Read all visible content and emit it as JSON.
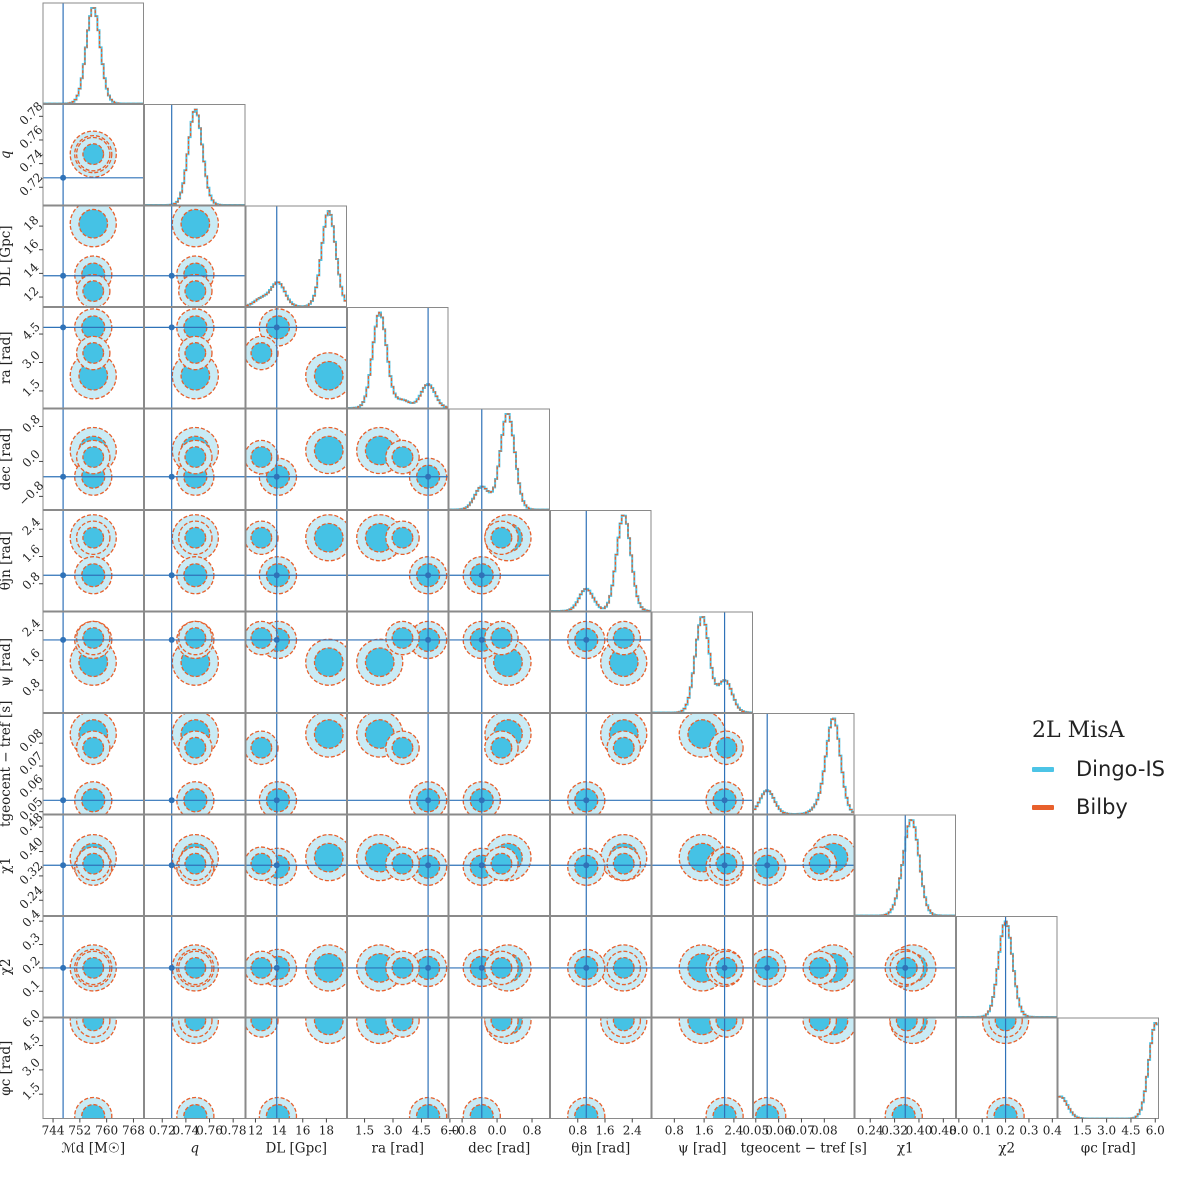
{
  "chart_data": {
    "type": "corner",
    "parameters": [
      {
        "label": "ℳd [M☉]",
        "short": "Md",
        "range": [
          741,
          771
        ],
        "ticks": [
          744,
          752,
          760,
          768
        ],
        "truth": 747
      },
      {
        "label": "q",
        "short": "q",
        "range": [
          0.705,
          0.79
        ],
        "ticks": [
          0.72,
          0.74,
          0.76,
          0.78
        ],
        "truth": 0.728
      },
      {
        "label": "DL [Gpc]",
        "short": "DL",
        "range": [
          11.2,
          19.7
        ],
        "ticks": [
          12,
          14,
          16,
          18
        ],
        "truth": 13.8
      },
      {
        "label": "ra [rad]",
        "short": "ra",
        "range": [
          0.6,
          5.9
        ],
        "ticks": [
          1.5,
          3.0,
          4.5,
          6.0
        ],
        "truth": 4.85
      },
      {
        "label": "dec [rad]",
        "short": "dec",
        "range": [
          -1.1,
          1.2
        ],
        "ticks": [
          -0.8,
          0.0,
          0.8
        ],
        "truth": -0.35
      },
      {
        "label": "θjn [rad]",
        "short": "theta_jn",
        "range": [
          0.0,
          2.95
        ],
        "ticks": [
          0.8,
          1.6,
          2.4
        ],
        "truth": 1.05
      },
      {
        "label": "ψ [rad]",
        "short": "psi",
        "range": [
          0.2,
          2.9
        ],
        "ticks": [
          0.8,
          1.6,
          2.4
        ],
        "truth": 2.15
      },
      {
        "label": "tgeocent − tref [s]",
        "short": "tc",
        "range": [
          0.049,
          0.093
        ],
        "ticks": [
          0.05,
          0.06,
          0.07,
          0.08
        ],
        "truth": 0.055
      },
      {
        "label": "χ1",
        "short": "chi1",
        "range": [
          0.19,
          0.52
        ],
        "ticks": [
          0.24,
          0.32,
          0.4,
          0.48
        ],
        "truth": 0.355
      },
      {
        "label": "χ2",
        "short": "chi2",
        "range": [
          -0.01,
          0.42
        ],
        "ticks": [
          0.0,
          0.1,
          0.2,
          0.3,
          0.4
        ],
        "truth": 0.2
      },
      {
        "label": "φc [rad]",
        "short": "phi_c",
        "range": [
          0.0,
          6.2
        ],
        "ticks": [
          1.5,
          3.0,
          4.5,
          6.0
        ],
        "truth": null
      }
    ],
    "x_tick_labels": [
      [
        "744",
        "752",
        "760",
        "768"
      ],
      [
        "0.72",
        "0.74",
        "0.76",
        "0.78"
      ],
      [
        "12",
        "14",
        "16",
        "18"
      ],
      [
        "1.5",
        "3.0",
        "4.5",
        "6.0"
      ],
      [
        "−0.8",
        "0.0",
        "0.8"
      ],
      [
        "0.8",
        "1.6",
        "2.4"
      ],
      [
        "0.8",
        "1.6",
        "2.4"
      ],
      [
        "0.05",
        "0.06",
        "0.07",
        "0.08"
      ],
      [
        "0.24",
        "0.32",
        "0.40",
        "0.48"
      ],
      [
        "0.0",
        "0.1",
        "0.2",
        "0.3",
        "0.4"
      ],
      [
        "1.5",
        "3.0",
        "4.5",
        "6.0"
      ]
    ],
    "y_tick_labels": [
      null,
      [
        "0.72",
        "0.74",
        "0.76",
        "0.78"
      ],
      [
        "12",
        "14",
        "16",
        "18"
      ],
      [
        "1.5",
        "3.0",
        "4.5",
        "6.0"
      ],
      [
        "−0.8",
        "0.0",
        "0.8"
      ],
      [
        "0.8",
        "1.6",
        "2.4"
      ],
      [
        "0.8",
        "1.6",
        "2.4"
      ],
      [
        "0.05",
        "0.06",
        "0.07",
        "0.08"
      ],
      [
        "0.24",
        "0.32",
        "0.40",
        "0.48"
      ],
      [
        "0.1",
        "0.2",
        "0.3",
        "0.4"
      ],
      [
        "1.5",
        "3.0",
        "4.5",
        "6.0"
      ]
    ],
    "modes": [
      {
        "weight": 0.72,
        "Md": 756,
        "q": 0.748,
        "DL": 18.2,
        "ra": 2.3,
        "dec": 0.25,
        "theta_jn": 2.15,
        "psi": 1.55,
        "tc": 0.084,
        "chi1": 0.38,
        "chi2": 0.2,
        "phi_c": 6.05
      },
      {
        "weight": 0.18,
        "Md": 756,
        "q": 0.748,
        "DL": 13.9,
        "ra": 4.85,
        "dec": -0.35,
        "theta_jn": 1.05,
        "psi": 2.15,
        "tc": 0.055,
        "chi1": 0.35,
        "chi2": 0.2,
        "phi_c": 0.15
      },
      {
        "weight": 0.06,
        "Md": 756,
        "q": 0.748,
        "DL": 12.5,
        "ra": 3.5,
        "dec": 0.1,
        "theta_jn": 2.15,
        "psi": 2.2,
        "tc": 0.078,
        "chi1": 0.36,
        "chi2": 0.2,
        "phi_c": 6.05
      }
    ],
    "legend": {
      "title": "2L MisA",
      "entries": [
        {
          "name": "Dingo-IS",
          "color": "#4cc4e6",
          "style": "solid"
        },
        {
          "name": "Bilby",
          "color": "#e8602c",
          "style": "dashed"
        }
      ]
    },
    "truth_color": "#2f72b8",
    "fill_inner_color": "#45c2e5",
    "fill_outer_color": "#c9ebf5"
  }
}
